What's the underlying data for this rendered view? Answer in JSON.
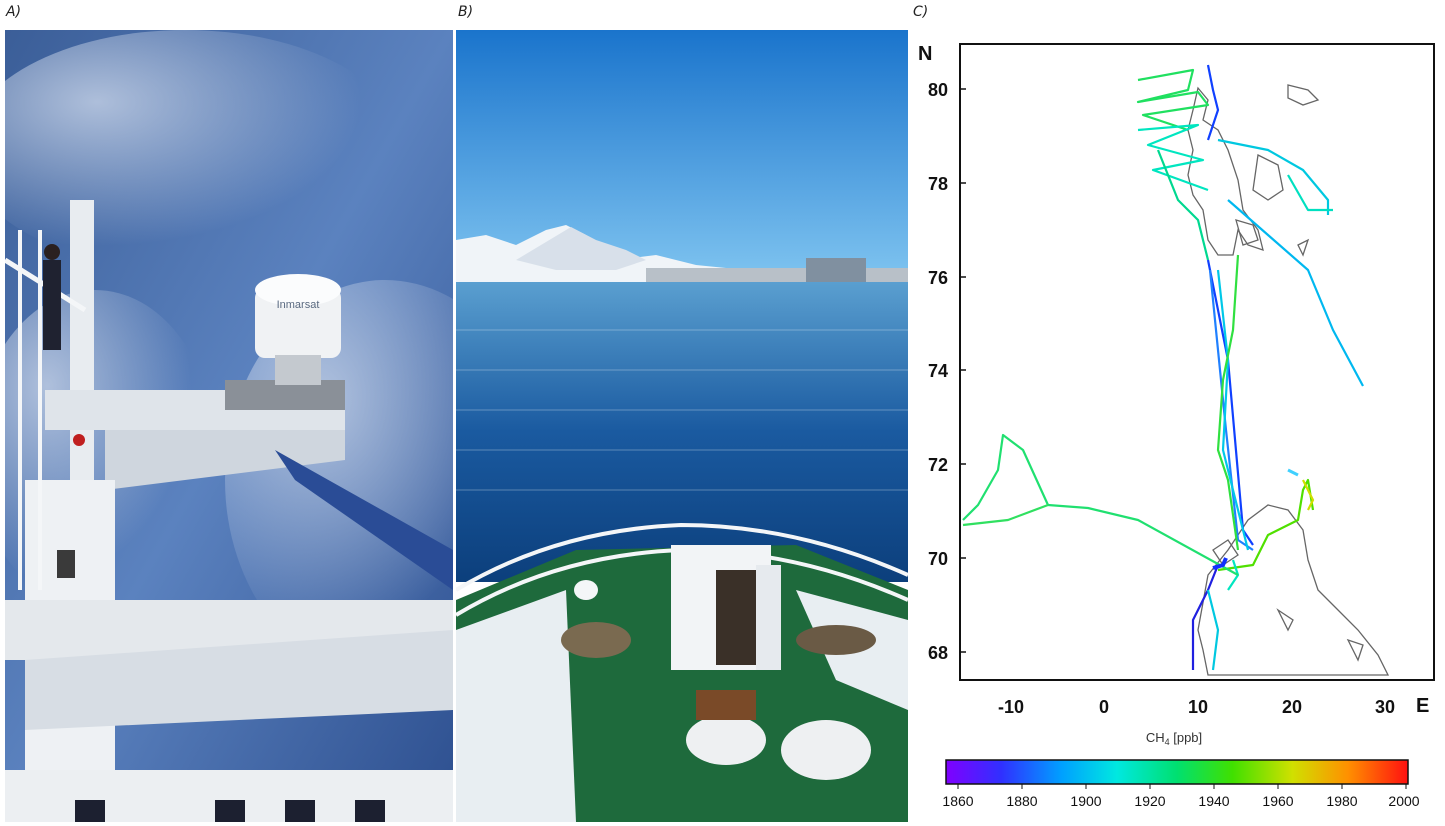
{
  "panels": {
    "a": {
      "label": "A)"
    },
    "b": {
      "label": "B)"
    },
    "c": {
      "label": "C)"
    }
  },
  "photo_a": {
    "antenna_text": "Inmarsat"
  },
  "map": {
    "north_label": "N",
    "east_label": "E",
    "lat_ticks": [
      "80",
      "78",
      "76",
      "74",
      "72",
      "70",
      "68"
    ],
    "lon_ticks": [
      "-10",
      "0",
      "10",
      "20",
      "30"
    ],
    "colorbar_title_main": "CH",
    "colorbar_title_sub": "4",
    "colorbar_title_unit": " [ppb]",
    "colorbar_ticks": [
      "1860",
      "1880",
      "1900",
      "1920",
      "1940",
      "1960",
      "1980",
      "2000"
    ],
    "colors": {
      "low": "#8000ff",
      "mid": "#00e6c0",
      "high": "#ff1a00",
      "coast": "#666666"
    }
  }
}
